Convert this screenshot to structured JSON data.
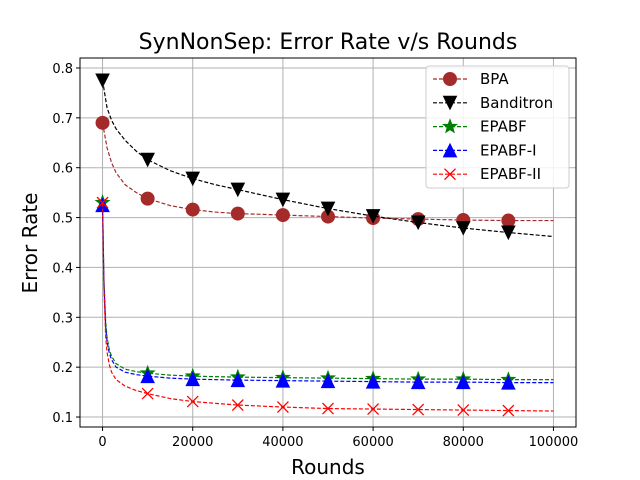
{
  "chart_data": {
    "type": "line",
    "title": "SynNonSep: Error Rate v/s Rounds",
    "xlabel": "Rounds",
    "ylabel": "Error Rate",
    "xlim": [
      -5000,
      105000
    ],
    "ylim": [
      0.08,
      0.82
    ],
    "xticks": [
      0,
      20000,
      40000,
      60000,
      80000,
      100000
    ],
    "xtick_labels": [
      "0",
      "20000",
      "40000",
      "60000",
      "80000",
      "100000"
    ],
    "yticks": [
      0.1,
      0.2,
      0.3,
      0.4,
      0.5,
      0.6,
      0.7,
      0.8
    ],
    "ytick_labels": [
      "0.1",
      "0.2",
      "0.3",
      "0.4",
      "0.5",
      "0.6",
      "0.7",
      "0.8"
    ],
    "grid": true,
    "legend_position": "top-right",
    "series": [
      {
        "name": "BPA",
        "color": "#a52a2a",
        "marker": "circle",
        "x": [
          0,
          1000,
          2000,
          3000,
          5000,
          7500,
          10000,
          15000,
          20000,
          25000,
          30000,
          40000,
          50000,
          60000,
          70000,
          80000,
          90000,
          100000
        ],
        "y": [
          0.69,
          0.64,
          0.61,
          0.59,
          0.566,
          0.55,
          0.538,
          0.524,
          0.516,
          0.511,
          0.508,
          0.505,
          0.502,
          0.499,
          0.497,
          0.495,
          0.494,
          0.494
        ],
        "marker_x": [
          0,
          10000,
          20000,
          30000,
          40000,
          50000,
          60000,
          70000,
          80000,
          90000
        ]
      },
      {
        "name": "Banditron",
        "color": "#000000",
        "marker": "triangle-down",
        "x": [
          0,
          1000,
          2000,
          3000,
          5000,
          7500,
          10000,
          15000,
          20000,
          25000,
          30000,
          40000,
          50000,
          60000,
          70000,
          80000,
          90000,
          100000
        ],
        "y": [
          0.775,
          0.72,
          0.695,
          0.678,
          0.655,
          0.633,
          0.616,
          0.594,
          0.578,
          0.566,
          0.556,
          0.536,
          0.518,
          0.503,
          0.49,
          0.479,
          0.47,
          0.462
        ],
        "marker_x": [
          0,
          10000,
          20000,
          30000,
          40000,
          50000,
          60000,
          70000,
          80000,
          90000
        ]
      },
      {
        "name": "EPABF",
        "color": "#008000",
        "marker": "star",
        "x": [
          0,
          300,
          700,
          1000,
          1500,
          2000,
          3000,
          5000,
          7500,
          10000,
          15000,
          20000,
          30000,
          40000,
          50000,
          60000,
          70000,
          80000,
          90000,
          100000
        ],
        "y": [
          0.53,
          0.38,
          0.29,
          0.26,
          0.235,
          0.222,
          0.207,
          0.196,
          0.191,
          0.188,
          0.184,
          0.182,
          0.18,
          0.179,
          0.178,
          0.177,
          0.176,
          0.176,
          0.175,
          0.175
        ],
        "marker_x": [
          0,
          10000,
          20000,
          30000,
          40000,
          50000,
          60000,
          70000,
          80000,
          90000
        ]
      },
      {
        "name": "EPABF-I",
        "color": "#0000ff",
        "marker": "triangle-up",
        "x": [
          0,
          300,
          700,
          1000,
          1500,
          2000,
          3000,
          5000,
          7500,
          10000,
          15000,
          20000,
          30000,
          40000,
          50000,
          60000,
          70000,
          80000,
          90000,
          100000
        ],
        "y": [
          0.525,
          0.37,
          0.28,
          0.252,
          0.228,
          0.215,
          0.2,
          0.19,
          0.185,
          0.182,
          0.178,
          0.176,
          0.174,
          0.173,
          0.172,
          0.171,
          0.17,
          0.17,
          0.169,
          0.169
        ],
        "marker_x": [
          0,
          10000,
          20000,
          30000,
          40000,
          50000,
          60000,
          70000,
          80000,
          90000
        ]
      },
      {
        "name": "EPABF-II",
        "color": "#ff0000",
        "marker": "x",
        "x": [
          0,
          300,
          700,
          1000,
          1500,
          2000,
          3000,
          5000,
          7500,
          10000,
          15000,
          20000,
          30000,
          40000,
          50000,
          60000,
          70000,
          80000,
          90000,
          100000
        ],
        "y": [
          0.53,
          0.36,
          0.26,
          0.23,
          0.205,
          0.19,
          0.175,
          0.162,
          0.153,
          0.147,
          0.137,
          0.131,
          0.124,
          0.12,
          0.117,
          0.116,
          0.115,
          0.114,
          0.113,
          0.112
        ],
        "marker_x": [
          0,
          10000,
          20000,
          30000,
          40000,
          50000,
          60000,
          70000,
          80000,
          90000
        ]
      }
    ]
  }
}
